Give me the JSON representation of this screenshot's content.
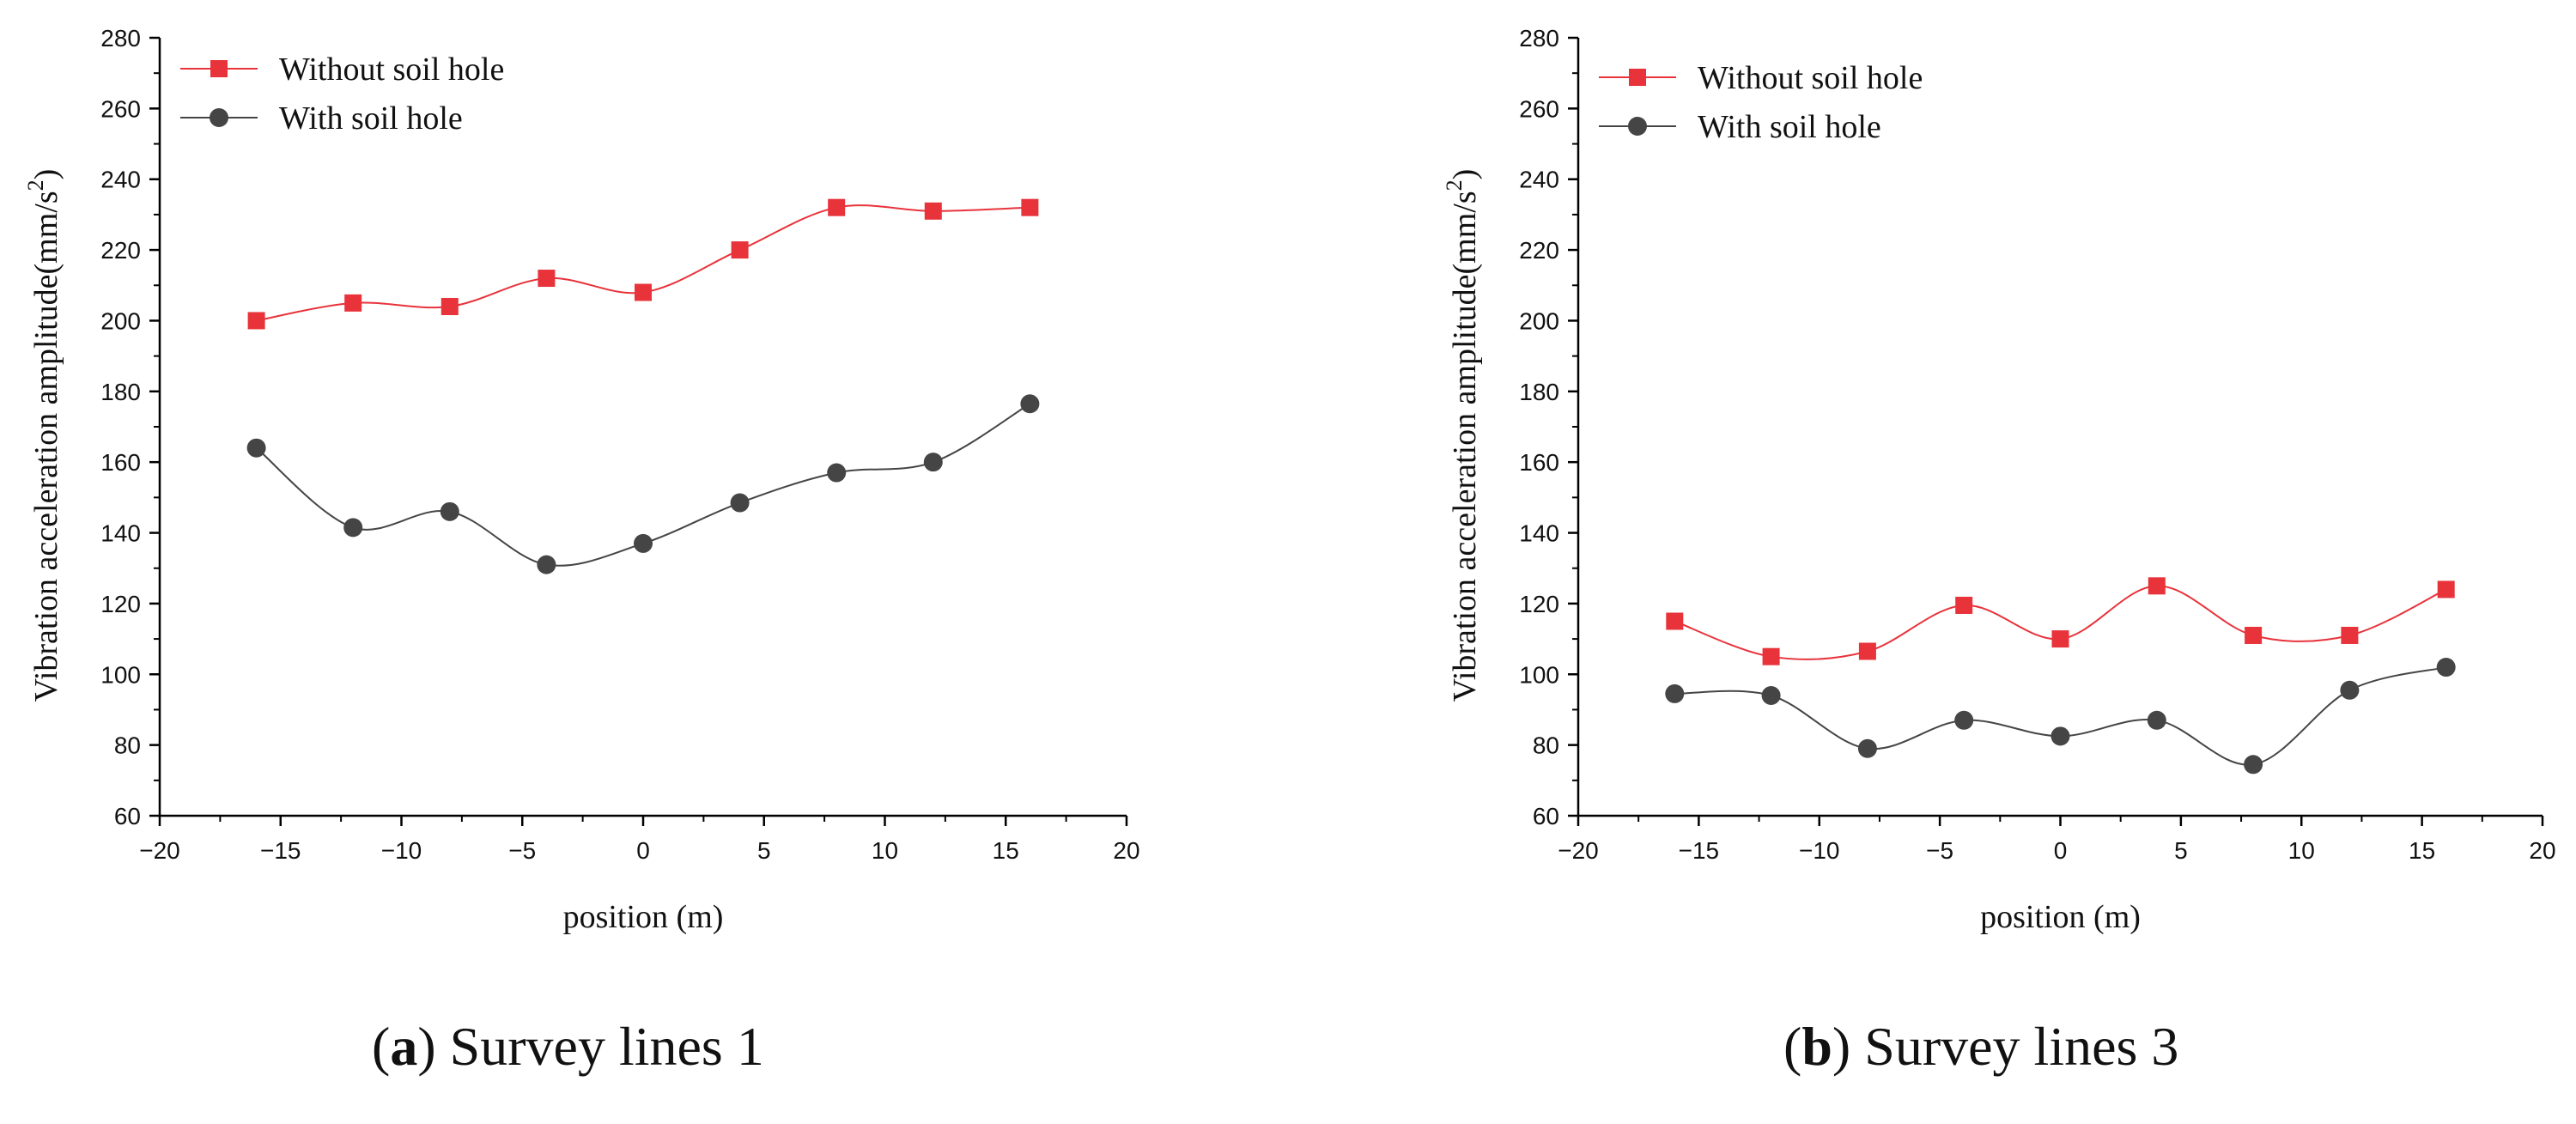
{
  "chart_data": [
    {
      "type": "line",
      "caption": {
        "letter": "a",
        "title": "Survey lines 1"
      },
      "xlabel": "position (m)",
      "ylabel": "Vibration acceleration amplitude(mm/s",
      "ylabel_sup": "2",
      "ylabel_close": ")",
      "xlim": [
        -20,
        20
      ],
      "ylim": [
        60,
        280
      ],
      "xticks": [
        -20,
        -15,
        -10,
        -5,
        0,
        5,
        10,
        15,
        20
      ],
      "yticks": [
        60,
        80,
        100,
        120,
        140,
        160,
        180,
        200,
        220,
        240,
        260,
        280
      ],
      "xtick_labels": [
        "−20",
        "−15",
        "−10",
        "−5",
        "0",
        "5",
        "10",
        "15",
        "20"
      ],
      "x": [
        -16,
        -12,
        -8,
        -4,
        0,
        4,
        8,
        12,
        16
      ],
      "legend_position": "top-left",
      "series": [
        {
          "name": "Without soil hole",
          "marker": "square",
          "color": "#e8333b",
          "values": [
            200,
            205,
            204,
            212,
            208,
            220,
            232,
            231,
            232
          ]
        },
        {
          "name": "With soil hole",
          "marker": "circle",
          "color": "#454545",
          "values": [
            164,
            141.5,
            146,
            131,
            137,
            148.5,
            157,
            160,
            176.5
          ]
        }
      ]
    },
    {
      "type": "line",
      "caption": {
        "letter": "b",
        "title": "Survey lines 3"
      },
      "xlabel": "position (m)",
      "ylabel": "Vibration acceleration amplitude(mm/s",
      "ylabel_sup": "2",
      "ylabel_close": ")",
      "xlim": [
        -20,
        20
      ],
      "ylim": [
        60,
        280
      ],
      "xticks": [
        -20,
        -15,
        -10,
        -5,
        0,
        5,
        10,
        15,
        20
      ],
      "yticks": [
        60,
        80,
        100,
        120,
        140,
        160,
        180,
        200,
        220,
        240,
        260,
        280
      ],
      "xtick_labels": [
        "−20",
        "−15",
        "−10",
        "−5",
        "0",
        "5",
        "10",
        "15",
        "20"
      ],
      "x": [
        -16,
        -12,
        -8,
        -4,
        0,
        4,
        8,
        12,
        16
      ],
      "legend_position": "top-left",
      "series": [
        {
          "name": "Without soil hole",
          "marker": "square",
          "color": "#e8333b",
          "values": [
            115,
            105,
            106.5,
            119.5,
            110,
            125,
            111,
            111,
            124
          ]
        },
        {
          "name": "With soil hole",
          "marker": "circle",
          "color": "#454545",
          "values": [
            94.5,
            94,
            79,
            87,
            82.5,
            87,
            74.5,
            95.5,
            102
          ]
        }
      ]
    }
  ]
}
